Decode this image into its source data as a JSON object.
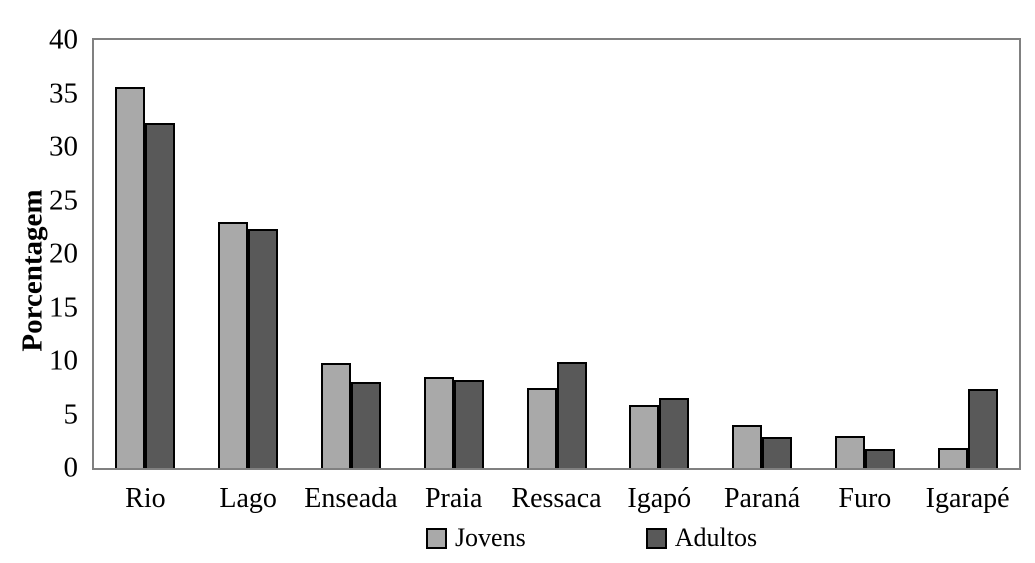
{
  "chart_data": {
    "type": "bar",
    "title": "",
    "xlabel": "",
    "ylabel": "Porcentagem",
    "ylim": [
      0,
      40
    ],
    "yticks": [
      0,
      5,
      10,
      15,
      20,
      25,
      30,
      35,
      40
    ],
    "grid": false,
    "legend_position": "bottom",
    "categories": [
      "Rio",
      "Lago",
      "Enseada",
      "Praia",
      "Ressaca",
      "Igapó",
      "Paraná",
      "Furo",
      "Igarapé"
    ],
    "series": [
      {
        "name": "Jovens",
        "color": "#a9a9a9",
        "values": [
          35.6,
          23.0,
          9.8,
          8.5,
          7.5,
          5.9,
          4.0,
          3.0,
          1.9
        ]
      },
      {
        "name": "Adultos",
        "color": "#595959",
        "values": [
          32.2,
          22.3,
          8.0,
          8.2,
          9.9,
          6.5,
          2.9,
          1.8,
          7.4
        ]
      }
    ]
  },
  "colors": {
    "background": "#ffffff",
    "plot_frame": "#808080",
    "bar_border": "#000000",
    "text": "#000000"
  }
}
